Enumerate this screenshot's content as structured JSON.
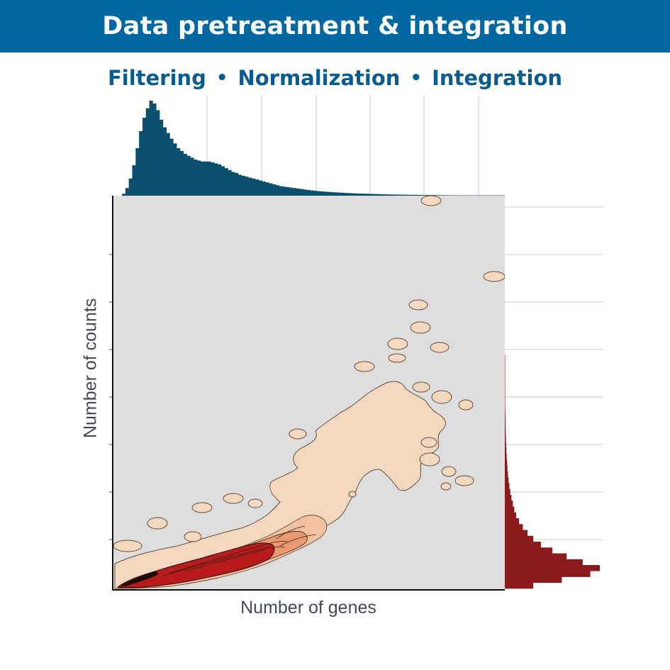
{
  "header": {
    "title": "Data pretreatment & integration"
  },
  "subtitle": {
    "items": [
      "Filtering",
      "Normalization",
      "Integration"
    ],
    "separator": "•"
  },
  "colors": {
    "banner": "#0067a0",
    "subtitle": "#0a5c8f",
    "top_hist": "#0b4f6c",
    "right_hist": "#8b1a1a",
    "panel_bg": "#dedede",
    "density_low": "#f3d8c0",
    "density_mid": "#ecaa80",
    "density_high": "#b81b1b"
  },
  "chart_data": {
    "type": "heatmap",
    "subtype": "2d-density-contour-with-marginal-histograms",
    "xlabel": "Number of genes",
    "ylabel": "Number of counts",
    "grid": true,
    "top_marginal_histogram": {
      "bin_heights": [
        0.02,
        0.08,
        0.18,
        0.32,
        0.5,
        0.68,
        0.82,
        0.92,
        1.0,
        0.97,
        0.9,
        0.8,
        0.72,
        0.66,
        0.6,
        0.55,
        0.5,
        0.47,
        0.44,
        0.42,
        0.4,
        0.38,
        0.37,
        0.36,
        0.36,
        0.36,
        0.35,
        0.34,
        0.33,
        0.31,
        0.29,
        0.27,
        0.25,
        0.24,
        0.22,
        0.21,
        0.2,
        0.19,
        0.18,
        0.17,
        0.16,
        0.15,
        0.14,
        0.13,
        0.12,
        0.11,
        0.1,
        0.095,
        0.09,
        0.085,
        0.08,
        0.075,
        0.07,
        0.065,
        0.06,
        0.056,
        0.052,
        0.048,
        0.045,
        0.042,
        0.04,
        0.037,
        0.035,
        0.033,
        0.031,
        0.029,
        0.027,
        0.025,
        0.024,
        0.022,
        0.021,
        0.02,
        0.019,
        0.018,
        0.017,
        0.016,
        0.015,
        0.014,
        0.013,
        0.012,
        0.012,
        0.011,
        0.01,
        0.01,
        0.009,
        0.009,
        0.008,
        0.008,
        0.007,
        0.007,
        0.006,
        0.006,
        0.005,
        0.005,
        0.005,
        0.004,
        0.004,
        0.004,
        0.003,
        0.003,
        0.003,
        0.003,
        0.002,
        0.002,
        0.002,
        0.002,
        0.002,
        0.001,
        0.001,
        0.001,
        0.001,
        0.001
      ]
    },
    "right_marginal_histogram": {
      "bin_heights": [
        0.001,
        0.001,
        0.002,
        0.002,
        0.002,
        0.003,
        0.003,
        0.004,
        0.004,
        0.005,
        0.006,
        0.007,
        0.008,
        0.01,
        0.012,
        0.014,
        0.017,
        0.02,
        0.024,
        0.028,
        0.033,
        0.04,
        0.048,
        0.058,
        0.07,
        0.085,
        0.1,
        0.12,
        0.15,
        0.19,
        0.24,
        0.3,
        0.38,
        0.5,
        0.65,
        0.82,
        1.0,
        0.9,
        0.6,
        0.3
      ]
    },
    "density_levels": [
      "5",
      "10",
      "25",
      "50",
      "100",
      "250"
    ]
  }
}
